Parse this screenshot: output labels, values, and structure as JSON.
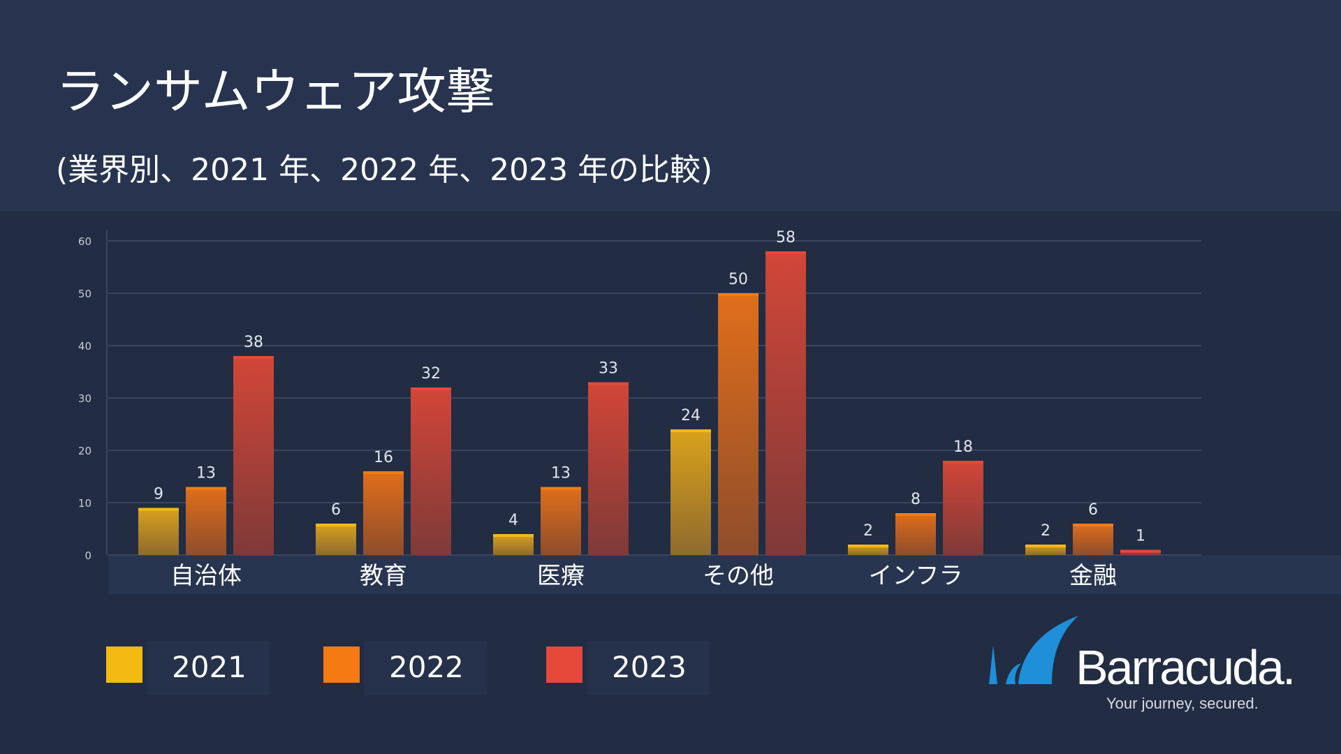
{
  "chart_data": {
    "type": "bar",
    "title": "ランサムウェア攻撃",
    "subtitle": "(業界別、2021 年、2022 年、2023 年の比較)",
    "categories": [
      "自治体",
      "教育",
      "医療",
      "その他",
      "インフラ",
      "金融"
    ],
    "series": [
      {
        "name": "2021",
        "values": [
          9,
          6,
          4,
          24,
          2,
          2
        ]
      },
      {
        "name": "2022",
        "values": [
          13,
          16,
          13,
          50,
          8,
          6
        ]
      },
      {
        "name": "2023",
        "values": [
          38,
          32,
          33,
          58,
          18,
          1
        ]
      }
    ],
    "yticks": [
      "0",
      "10",
      "20",
      "30",
      "40",
      "50",
      "60"
    ],
    "ylim": [
      0,
      60
    ],
    "xlabel": "",
    "ylabel": "",
    "grid": true,
    "legend_position": "bottom-left"
  },
  "colors": {
    "2021": "#f5b914",
    "2022": "#f57a14",
    "2023": "#e6483a",
    "grid": "#3a4560",
    "axis_band": "#283550",
    "accent_logo": "#1e8fd8"
  },
  "logo": {
    "name": "Barracuda.",
    "tagline": "Your journey, secured."
  }
}
